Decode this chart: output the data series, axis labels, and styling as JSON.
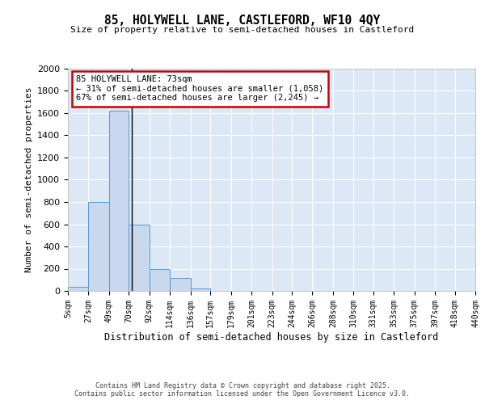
{
  "title_line1": "85, HOLYWELL LANE, CASTLEFORD, WF10 4QY",
  "title_line2": "Size of property relative to semi-detached houses in Castleford",
  "xlabel": "Distribution of semi-detached houses by size in Castleford",
  "ylabel": "Number of semi-detached properties",
  "bin_edges": [
    5,
    27,
    49,
    70,
    92,
    114,
    136,
    157,
    179,
    201,
    223,
    244,
    266,
    288,
    310,
    331,
    353,
    375,
    397,
    418,
    440
  ],
  "bar_heights": [
    40,
    800,
    1620,
    600,
    200,
    120,
    20,
    0,
    0,
    0,
    0,
    0,
    0,
    0,
    0,
    0,
    0,
    0,
    0,
    0
  ],
  "bar_color": "#c8d8ee",
  "bar_edge_color": "#5b9bd5",
  "property_size": 73,
  "annotation_line1": "85 HOLYWELL LANE: 73sqm",
  "annotation_line2": "← 31% of semi-detached houses are smaller (1,058)",
  "annotation_line3": "67% of semi-detached houses are larger (2,245) →",
  "annotation_box_color": "#ffffff",
  "annotation_box_edge": "#cc0000",
  "vline_color": "#000000",
  "ylim": [
    0,
    2000
  ],
  "background_color": "#dce8f5",
  "grid_color": "#ffffff",
  "fig_background": "#ffffff",
  "footer_line1": "Contains HM Land Registry data © Crown copyright and database right 2025.",
  "footer_line2": "Contains public sector information licensed under the Open Government Licence v3.0."
}
